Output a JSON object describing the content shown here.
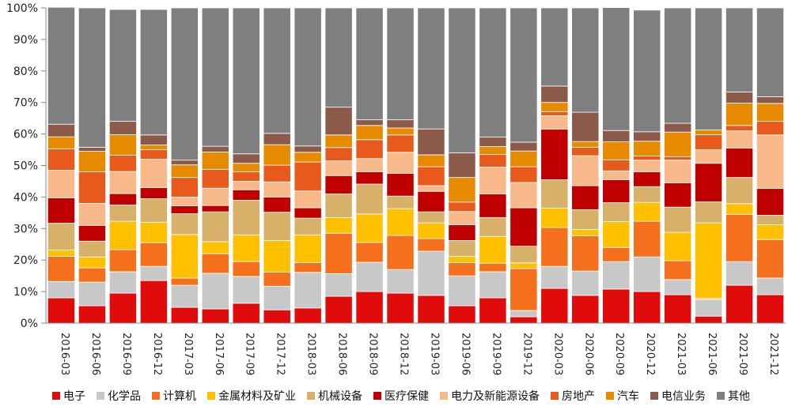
{
  "chart_data": {
    "type": "bar",
    "stacked": true,
    "title": "",
    "xlabel": "",
    "ylabel": "",
    "ylim": [
      0,
      100
    ],
    "y_ticks": [
      "0%",
      "10%",
      "20%",
      "30%",
      "40%",
      "50%",
      "60%",
      "70%",
      "80%",
      "90%",
      "100%"
    ],
    "categories": [
      "2016-03",
      "2016-06",
      "2016-09",
      "2016-12",
      "2017-03",
      "2017-06",
      "2017-09",
      "2017-12",
      "2018-03",
      "2018-06",
      "2018-09",
      "2018-12",
      "2019-03",
      "2019-06",
      "2019-09",
      "2019-12",
      "2020-03",
      "2020-06",
      "2020-09",
      "2020-12",
      "2021-03",
      "2021-06",
      "2021-09",
      "2021-12"
    ],
    "legend_position": "bottom",
    "series": [
      {
        "name": "电子",
        "color": "#e00b0b",
        "values": [
          8,
          5.5,
          9.5,
          13.5,
          5,
          4.5,
          6.3,
          4.2,
          4.8,
          8.5,
          10,
          9.5,
          8.8,
          5.5,
          8,
          2,
          11,
          8.8,
          10.8,
          10,
          9,
          2.2,
          12,
          9
        ]
      },
      {
        "name": "化学品",
        "color": "#c8c8c8",
        "values": [
          5.2,
          7.5,
          6.8,
          4.5,
          7,
          11.3,
          8.5,
          7.5,
          11.3,
          7.2,
          9.3,
          7.5,
          14,
          9.5,
          8.3,
          2,
          7,
          7.7,
          8.7,
          11,
          4.8,
          5.3,
          7.5,
          5.3
        ]
      },
      {
        "name": "计算机",
        "color": "#f4701c",
        "values": [
          8,
          4.5,
          7,
          7.5,
          2.3,
          6.2,
          4.7,
          4.5,
          3.1,
          12.8,
          6.3,
          10.8,
          4,
          4.2,
          2.7,
          13.3,
          12.3,
          11.2,
          4.5,
          11.3,
          6,
          0.3,
          15,
          12.2
        ]
      },
      {
        "name": "金属材料及矿业",
        "color": "#ffc000",
        "values": [
          2,
          3.5,
          9,
          6.5,
          13.8,
          3.8,
          8.5,
          10,
          8.8,
          5,
          9,
          8.5,
          5,
          2,
          8.5,
          1.8,
          6.2,
          2,
          8.2,
          6,
          9,
          24,
          3.4,
          4.7
        ]
      },
      {
        "name": "机械设备",
        "color": "#d7b06a",
        "values": [
          8.5,
          5,
          5.2,
          7.5,
          6.6,
          9.5,
          11,
          9,
          5.3,
          7.5,
          9.5,
          4,
          3.5,
          5,
          6,
          5.3,
          9,
          6.3,
          6,
          5,
          8,
          6.7,
          8.3,
          3
        ]
      },
      {
        "name": "医疗保健",
        "color": "#c00000",
        "values": [
          8,
          5,
          3.6,
          3.5,
          2.5,
          2,
          3.3,
          4.8,
          3.3,
          5.8,
          3.9,
          7.2,
          6.5,
          5,
          7.5,
          12.2,
          16,
          7.6,
          7.3,
          4.7,
          7.7,
          12.2,
          9.3,
          8.5
        ]
      },
      {
        "name": "电力及新能源设备",
        "color": "#f8b98a",
        "values": [
          8.8,
          7,
          7,
          9,
          2.8,
          5.5,
          2.7,
          4.8,
          5.3,
          4.7,
          4.2,
          6.7,
          1.8,
          4.2,
          8.5,
          8,
          4.3,
          9.5,
          2.8,
          3.7,
          7.2,
          4.3,
          5.5,
          17
        ]
      },
      {
        "name": "房地产",
        "color": "#e85a1c",
        "values": [
          6.8,
          10,
          5.2,
          3,
          6.2,
          6,
          3,
          5.3,
          9.2,
          4.2,
          6,
          5.5,
          6,
          3,
          4,
          5,
          1.3,
          2.7,
          3.5,
          1.3,
          1.1,
          4.8,
          1.7,
          4.3
        ]
      },
      {
        "name": "汽车",
        "color": "#e68a00",
        "values": [
          3.8,
          6.5,
          6.5,
          1.5,
          4,
          5.5,
          2.7,
          6.5,
          3.1,
          4,
          4.5,
          2.2,
          3.8,
          7.8,
          2.5,
          5,
          2.9,
          1.8,
          5.7,
          4.7,
          7.8,
          1.5,
          7.1,
          5.7
        ]
      },
      {
        "name": "电信业务",
        "color": "#8b5a4b",
        "values": [
          4,
          1.3,
          4.2,
          3.2,
          1.5,
          1.8,
          3,
          3.6,
          2,
          8.8,
          1.8,
          2.6,
          8.2,
          7.8,
          3,
          2.8,
          5.2,
          9.3,
          3.6,
          3,
          2.8,
          0,
          3.5,
          2.1
        ]
      },
      {
        "name": "其他",
        "color": "#7f7f7f",
        "values": [
          37.1,
          44.2,
          35.5,
          39.8,
          48.3,
          43.9,
          46.3,
          39.8,
          43.8,
          31.5,
          35.5,
          35.5,
          38.4,
          46,
          41,
          42.6,
          24.8,
          33.1,
          39,
          38.6,
          36.6,
          38.7,
          26.7,
          28.2
        ]
      }
    ]
  }
}
